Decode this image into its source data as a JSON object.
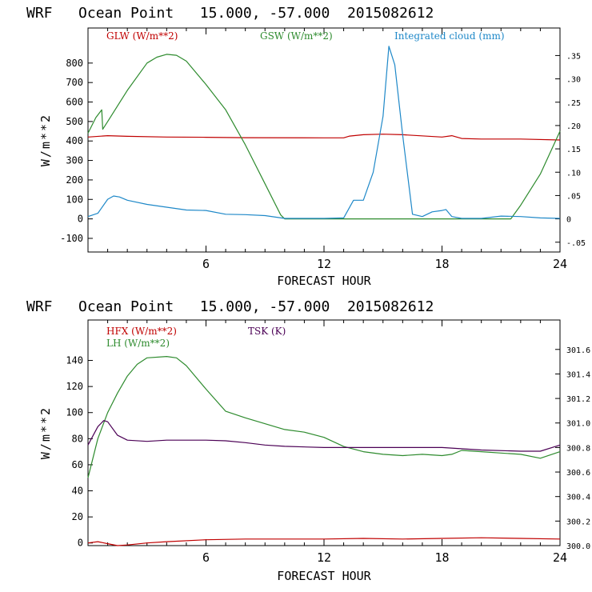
{
  "chart_data": [
    {
      "type": "line",
      "title": "WRF   Ocean Point   15.000, -57.000  2015082612",
      "xlabel": "FORECAST HOUR",
      "ylabel": "W/m**2",
      "xlim": [
        0,
        24
      ],
      "ylim": [
        -170,
        980
      ],
      "y2lim": [
        -0.071,
        0.409
      ],
      "x_ticks": [
        6,
        12,
        18,
        24
      ],
      "y_ticks": [
        -100,
        0,
        100,
        200,
        300,
        400,
        500,
        600,
        700,
        800
      ],
      "y2_ticks": [
        -0.05,
        0,
        0.05,
        0.1,
        0.15,
        0.2,
        0.25,
        0.3,
        0.35
      ],
      "y2_tick_labels": [
        "-.05",
        "0",
        ".05",
        ".10",
        ".15",
        ".20",
        ".25",
        ".30",
        ".35"
      ],
      "series": [
        {
          "name": "GLW (W/m**2)",
          "color": "#c00000",
          "axis": "left",
          "x": [
            0,
            1,
            2,
            4,
            6,
            8,
            12,
            13,
            13.3,
            14,
            15,
            16,
            18,
            18.5,
            19,
            20,
            22,
            24
          ],
          "y": [
            420,
            427,
            424,
            420,
            419,
            417,
            416,
            416,
            425,
            432,
            435,
            432,
            420,
            427,
            413,
            410,
            410,
            405
          ]
        },
        {
          "name": "GSW (W/m**2)",
          "color": "#2e8b2e",
          "axis": "left",
          "x": [
            0,
            0.4,
            0.7,
            0.75,
            1,
            2,
            3,
            3.5,
            4,
            4.5,
            5,
            6,
            7,
            8,
            9,
            9.8,
            10,
            12,
            20,
            21.5,
            22,
            23,
            24
          ],
          "y": [
            440,
            520,
            560,
            460,
            500,
            660,
            800,
            830,
            845,
            840,
            810,
            690,
            560,
            380,
            180,
            20,
            0,
            0,
            0,
            0,
            70,
            230,
            450
          ]
        },
        {
          "name": "Integrated cloud (mm)",
          "color": "#1e88c8",
          "axis": "right",
          "x": [
            0,
            0.5,
            1,
            1.3,
            1.6,
            2,
            3,
            4,
            5,
            6,
            7,
            8,
            9,
            10,
            11,
            12,
            13,
            13.5,
            14,
            14.5,
            15,
            15.3,
            15.6,
            16,
            16.5,
            17,
            17.5,
            18,
            18.2,
            18.5,
            19,
            20,
            21,
            22,
            23,
            24
          ],
          "y": [
            0.005,
            0.012,
            0.042,
            0.049,
            0.047,
            0.04,
            0.031,
            0.025,
            0.019,
            0.018,
            0.01,
            0.009,
            0.007,
            0.001,
            0.001,
            0.001,
            0.002,
            0.04,
            0.04,
            0.1,
            0.22,
            0.37,
            0.33,
            0.18,
            0.01,
            0.005,
            0.015,
            0.018,
            0.02,
            0.005,
            0.001,
            0.001,
            0.006,
            0.005,
            0.002,
            0.001
          ]
        }
      ]
    },
    {
      "type": "line",
      "title": "WRF   Ocean Point   15.000, -57.000  2015082612",
      "xlabel": "FORECAST HOUR",
      "ylabel": "W/m**2",
      "xlim": [
        0,
        24
      ],
      "ylim": [
        -2,
        171
      ],
      "y2lim": [
        300.0,
        301.84
      ],
      "x_ticks": [
        6,
        12,
        18,
        24
      ],
      "y_ticks": [
        0,
        20,
        40,
        60,
        80,
        100,
        120,
        140
      ],
      "y2_ticks": [
        300.0,
        300.2,
        300.4,
        300.6,
        300.8,
        301.0,
        301.2,
        301.4,
        301.6
      ],
      "y2_tick_labels": [
        "300.0",
        "300.2",
        "300.4",
        "300.6",
        "300.8",
        "301.0",
        "301.2",
        "301.4",
        "301.6"
      ],
      "series": [
        {
          "name": "HFX (W/m**2)",
          "color": "#c00000",
          "axis": "left",
          "x": [
            0,
            0.5,
            1,
            1.5,
            2,
            3,
            4,
            6,
            8,
            10,
            12,
            14,
            16,
            18,
            20,
            22,
            24
          ],
          "y": [
            0,
            1,
            -0.5,
            -2,
            -1.5,
            0,
            1,
            2.5,
            3,
            3,
            3,
            3.5,
            3,
            3.5,
            4,
            3.5,
            3
          ]
        },
        {
          "name": "LH (W/m**2)",
          "color": "#2e8b2e",
          "axis": "left",
          "x": [
            0,
            0.5,
            1,
            1.5,
            2,
            2.5,
            3,
            4,
            4.5,
            5,
            6,
            7,
            8,
            10,
            11,
            12,
            13,
            14,
            15,
            16,
            17,
            18,
            18.5,
            19,
            20,
            21,
            22,
            23,
            24
          ],
          "y": [
            50,
            80,
            100,
            115,
            128,
            137,
            142,
            143,
            142,
            136,
            118,
            101,
            96,
            87,
            85,
            81,
            74,
            70,
            68,
            67,
            68,
            67,
            68,
            71,
            70,
            69,
            68,
            65,
            70
          ]
        },
        {
          "name": "TSK (K)",
          "color": "#4b0055",
          "axis": "right",
          "x": [
            0,
            0.5,
            0.8,
            1,
            1.5,
            2,
            3,
            4,
            5,
            6,
            7,
            8,
            9,
            10,
            12,
            14,
            16,
            18,
            20,
            22,
            23,
            24
          ],
          "y": [
            300.82,
            300.97,
            301.02,
            301.01,
            300.9,
            300.86,
            300.85,
            300.86,
            300.86,
            300.86,
            300.855,
            300.84,
            300.82,
            300.81,
            300.8,
            300.8,
            300.8,
            300.8,
            300.78,
            300.77,
            300.77,
            300.82
          ]
        }
      ]
    }
  ]
}
